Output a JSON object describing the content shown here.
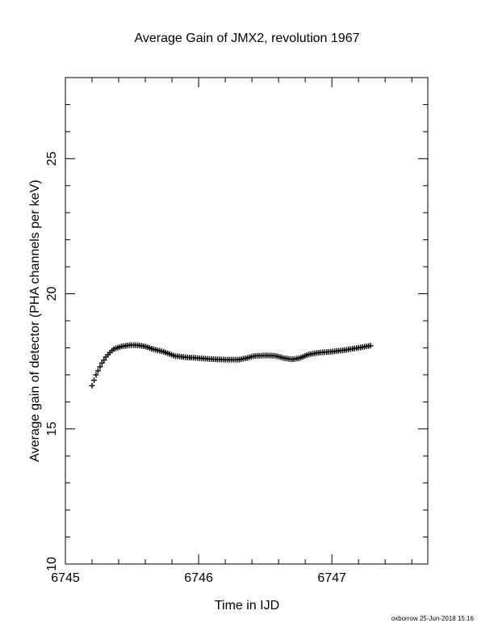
{
  "footer": {
    "credit": "oxborrow 25-Jun-2018 15:16"
  },
  "chart_data": {
    "type": "scatter",
    "title": "Average Gain of JMX2, revolution 1967",
    "xlabel": "Time in IJD",
    "ylabel": "Average gain of detector (PHA channels per keV)",
    "xlim": [
      6745,
      6747.72
    ],
    "ylim": [
      10,
      28
    ],
    "x_ticks": [
      6745,
      6746,
      6747
    ],
    "x_tick_labels": [
      "6745",
      "6746",
      "6747"
    ],
    "y_ticks": [
      10,
      15,
      20,
      25
    ],
    "y_tick_labels": [
      "10",
      "15",
      "20",
      "25"
    ],
    "x_minor_step": 0.2,
    "y_minor_step": 1,
    "grid": false,
    "marker": "+",
    "color": "#000000",
    "curve_points": [
      [
        6745.2,
        16.6
      ],
      [
        6745.23,
        17.0
      ],
      [
        6745.27,
        17.4
      ],
      [
        6745.31,
        17.7
      ],
      [
        6745.36,
        17.95
      ],
      [
        6745.42,
        18.05
      ],
      [
        6745.48,
        18.1
      ],
      [
        6745.54,
        18.1
      ],
      [
        6745.6,
        18.05
      ],
      [
        6745.66,
        17.95
      ],
      [
        6745.74,
        17.85
      ],
      [
        6745.82,
        17.7
      ],
      [
        6745.9,
        17.65
      ],
      [
        6746.0,
        17.62
      ],
      [
        6746.1,
        17.58
      ],
      [
        6746.2,
        17.56
      ],
      [
        6746.3,
        17.56
      ],
      [
        6746.36,
        17.62
      ],
      [
        6746.42,
        17.7
      ],
      [
        6746.5,
        17.72
      ],
      [
        6746.58,
        17.7
      ],
      [
        6746.64,
        17.62
      ],
      [
        6746.7,
        17.57
      ],
      [
        6746.76,
        17.62
      ],
      [
        6746.82,
        17.75
      ],
      [
        6746.9,
        17.82
      ],
      [
        6747.0,
        17.86
      ],
      [
        6747.1,
        17.92
      ],
      [
        6747.2,
        18.0
      ],
      [
        6747.29,
        18.08
      ]
    ]
  }
}
